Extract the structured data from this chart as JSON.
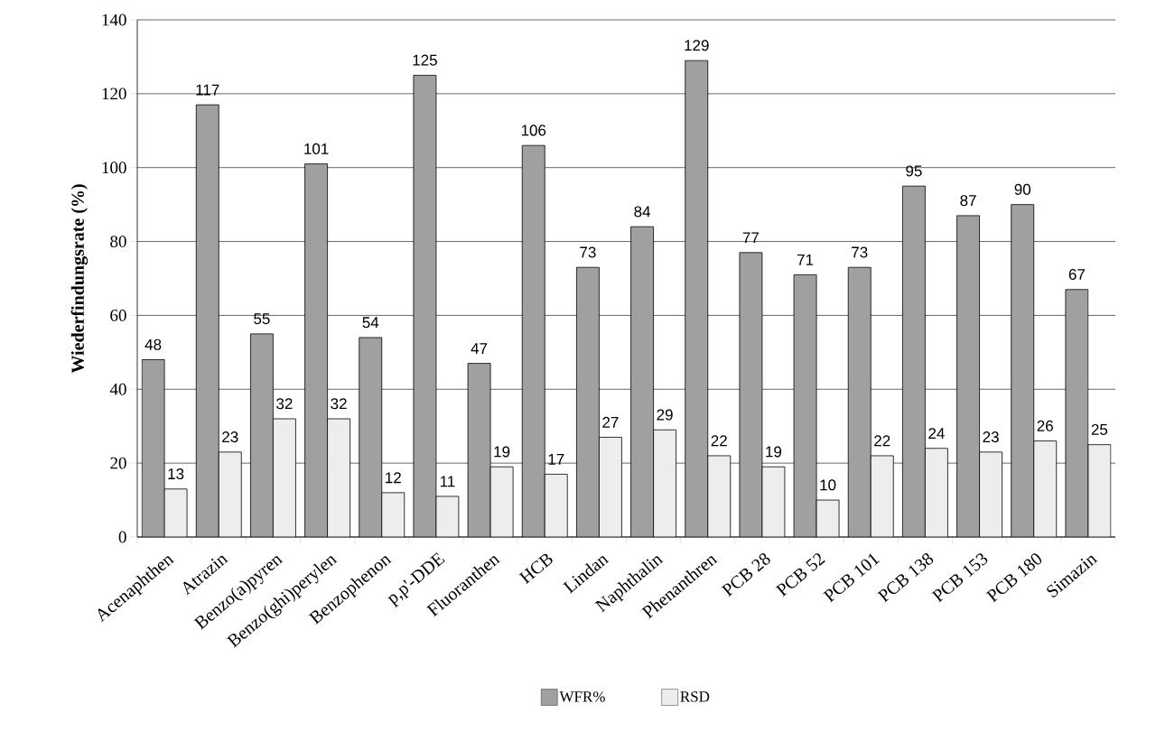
{
  "chart_data": {
    "type": "bar",
    "ylabel": "Wiederfindungsrate (%)",
    "categories": [
      "Acenaphthen",
      "Atrazin",
      "Benzo(a)pyren",
      "Benzo(ghi)perylen",
      "Benzophenon",
      "p,p'-DDE",
      "Fluoranthen",
      "HCB",
      "Lindan",
      "Naphthalin",
      "Phenanthren",
      "PCB 28",
      "PCB 52",
      "PCB 101",
      "PCB 138",
      "PCB 153",
      "PCB 180",
      "Simazin"
    ],
    "series": [
      {
        "name": "WFR%",
        "color": "#a0a0a0",
        "values": [
          48,
          117,
          55,
          101,
          54,
          125,
          47,
          106,
          73,
          84,
          129,
          77,
          71,
          73,
          95,
          87,
          90,
          67
        ]
      },
      {
        "name": "RSD",
        "color": "#ededed",
        "values": [
          13,
          23,
          32,
          32,
          12,
          11,
          19,
          17,
          27,
          29,
          22,
          19,
          10,
          22,
          24,
          23,
          26,
          25
        ]
      }
    ],
    "ylim": [
      0,
      140
    ],
    "yticks": [
      0,
      20,
      40,
      60,
      80,
      100,
      120,
      140
    ],
    "grid": "y",
    "legend": "bottom",
    "data_labels": true
  }
}
